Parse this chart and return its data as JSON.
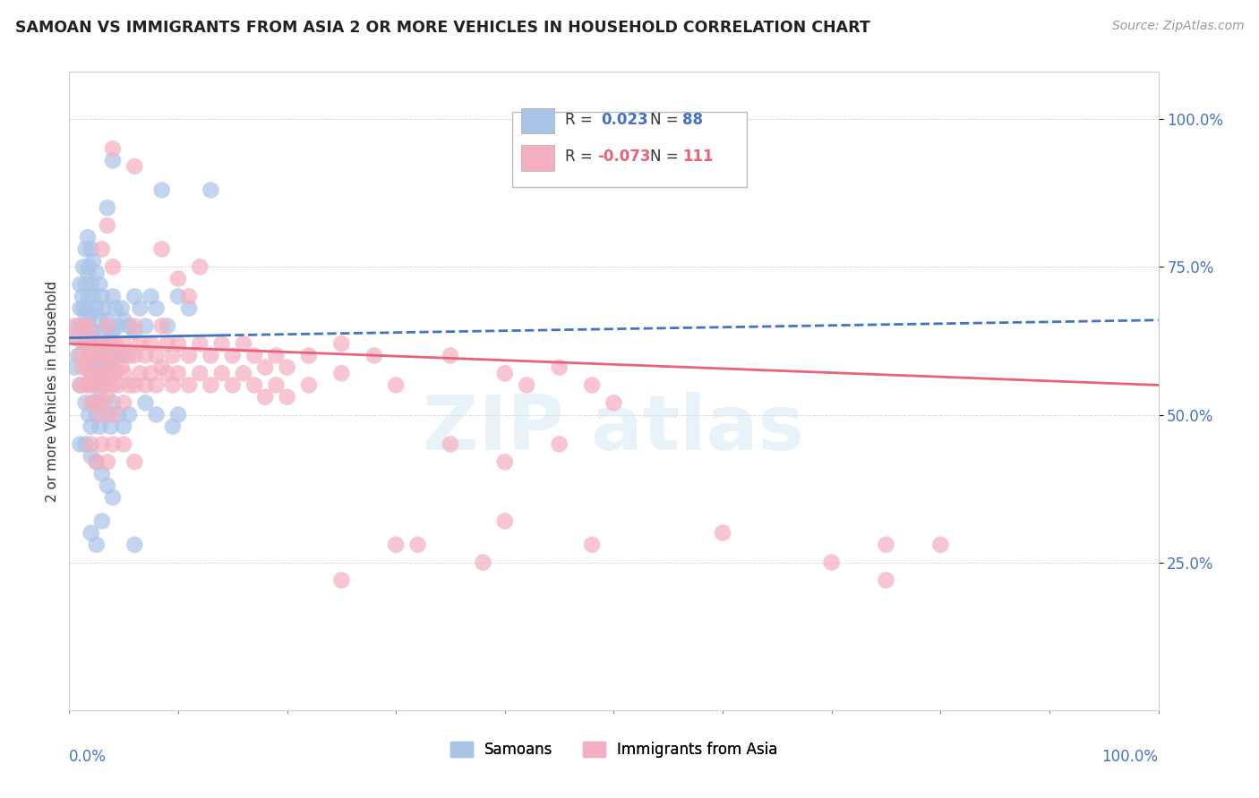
{
  "title": "SAMOAN VS IMMIGRANTS FROM ASIA 2 OR MORE VEHICLES IN HOUSEHOLD CORRELATION CHART",
  "source": "Source: ZipAtlas.com",
  "ylabel": "2 or more Vehicles in Household",
  "yticks": [
    "25.0%",
    "50.0%",
    "75.0%",
    "100.0%"
  ],
  "ytick_vals": [
    0.25,
    0.5,
    0.75,
    1.0
  ],
  "xlim": [
    0.0,
    1.0
  ],
  "ylim": [
    0.0,
    1.08
  ],
  "blue_color": "#aac4e8",
  "pink_color": "#f4afc0",
  "blue_line_color": "#4472c4",
  "pink_line_color": "#e8627a",
  "tick_color": "#4472c4",
  "background_color": "#ffffff",
  "blue_scatter": [
    [
      0.005,
      0.63
    ],
    [
      0.008,
      0.65
    ],
    [
      0.01,
      0.68
    ],
    [
      0.01,
      0.72
    ],
    [
      0.012,
      0.7
    ],
    [
      0.012,
      0.65
    ],
    [
      0.013,
      0.75
    ],
    [
      0.013,
      0.68
    ],
    [
      0.013,
      0.62
    ],
    [
      0.015,
      0.78
    ],
    [
      0.015,
      0.72
    ],
    [
      0.015,
      0.67
    ],
    [
      0.015,
      0.62
    ],
    [
      0.017,
      0.8
    ],
    [
      0.017,
      0.74
    ],
    [
      0.017,
      0.68
    ],
    [
      0.017,
      0.63
    ],
    [
      0.017,
      0.58
    ],
    [
      0.018,
      0.75
    ],
    [
      0.018,
      0.7
    ],
    [
      0.018,
      0.65
    ],
    [
      0.018,
      0.6
    ],
    [
      0.02,
      0.78
    ],
    [
      0.02,
      0.72
    ],
    [
      0.02,
      0.67
    ],
    [
      0.02,
      0.62
    ],
    [
      0.02,
      0.57
    ],
    [
      0.022,
      0.76
    ],
    [
      0.022,
      0.7
    ],
    [
      0.022,
      0.64
    ],
    [
      0.022,
      0.58
    ],
    [
      0.025,
      0.74
    ],
    [
      0.025,
      0.68
    ],
    [
      0.025,
      0.62
    ],
    [
      0.025,
      0.56
    ],
    [
      0.028,
      0.72
    ],
    [
      0.028,
      0.66
    ],
    [
      0.028,
      0.6
    ],
    [
      0.028,
      0.54
    ],
    [
      0.03,
      0.7
    ],
    [
      0.03,
      0.64
    ],
    [
      0.03,
      0.58
    ],
    [
      0.032,
      0.68
    ],
    [
      0.032,
      0.62
    ],
    [
      0.032,
      0.56
    ],
    [
      0.035,
      0.66
    ],
    [
      0.035,
      0.6
    ],
    [
      0.038,
      0.64
    ],
    [
      0.038,
      0.58
    ],
    [
      0.04,
      0.7
    ],
    [
      0.04,
      0.64
    ],
    [
      0.04,
      0.58
    ],
    [
      0.042,
      0.68
    ],
    [
      0.045,
      0.65
    ],
    [
      0.045,
      0.6
    ],
    [
      0.048,
      0.68
    ],
    [
      0.05,
      0.66
    ],
    [
      0.05,
      0.6
    ],
    [
      0.055,
      0.65
    ],
    [
      0.06,
      0.7
    ],
    [
      0.06,
      0.64
    ],
    [
      0.065,
      0.68
    ],
    [
      0.07,
      0.65
    ],
    [
      0.075,
      0.7
    ],
    [
      0.08,
      0.68
    ],
    [
      0.09,
      0.65
    ],
    [
      0.1,
      0.7
    ],
    [
      0.11,
      0.68
    ],
    [
      0.01,
      0.55
    ],
    [
      0.015,
      0.52
    ],
    [
      0.018,
      0.5
    ],
    [
      0.02,
      0.48
    ],
    [
      0.022,
      0.52
    ],
    [
      0.025,
      0.5
    ],
    [
      0.028,
      0.48
    ],
    [
      0.03,
      0.52
    ],
    [
      0.035,
      0.5
    ],
    [
      0.038,
      0.48
    ],
    [
      0.04,
      0.52
    ],
    [
      0.045,
      0.5
    ],
    [
      0.05,
      0.48
    ],
    [
      0.005,
      0.58
    ],
    [
      0.008,
      0.6
    ],
    [
      0.01,
      0.45
    ],
    [
      0.015,
      0.45
    ],
    [
      0.02,
      0.43
    ],
    [
      0.025,
      0.42
    ],
    [
      0.03,
      0.4
    ],
    [
      0.035,
      0.38
    ],
    [
      0.04,
      0.36
    ],
    [
      0.02,
      0.3
    ],
    [
      0.025,
      0.28
    ],
    [
      0.03,
      0.32
    ],
    [
      0.06,
      0.28
    ],
    [
      0.04,
      0.93
    ],
    [
      0.085,
      0.88
    ],
    [
      0.035,
      0.85
    ],
    [
      0.13,
      0.88
    ],
    [
      0.055,
      0.5
    ],
    [
      0.07,
      0.52
    ],
    [
      0.08,
      0.5
    ],
    [
      0.095,
      0.48
    ],
    [
      0.1,
      0.5
    ]
  ],
  "pink_scatter": [
    [
      0.005,
      0.65
    ],
    [
      0.008,
      0.63
    ],
    [
      0.01,
      0.6
    ],
    [
      0.01,
      0.55
    ],
    [
      0.012,
      0.65
    ],
    [
      0.012,
      0.58
    ],
    [
      0.015,
      0.62
    ],
    [
      0.015,
      0.55
    ],
    [
      0.017,
      0.65
    ],
    [
      0.017,
      0.58
    ],
    [
      0.018,
      0.6
    ],
    [
      0.018,
      0.55
    ],
    [
      0.02,
      0.63
    ],
    [
      0.02,
      0.57
    ],
    [
      0.02,
      0.52
    ],
    [
      0.022,
      0.6
    ],
    [
      0.022,
      0.55
    ],
    [
      0.025,
      0.62
    ],
    [
      0.025,
      0.57
    ],
    [
      0.025,
      0.52
    ],
    [
      0.028,
      0.6
    ],
    [
      0.028,
      0.55
    ],
    [
      0.028,
      0.5
    ],
    [
      0.03,
      0.62
    ],
    [
      0.03,
      0.57
    ],
    [
      0.03,
      0.52
    ],
    [
      0.032,
      0.6
    ],
    [
      0.032,
      0.55
    ],
    [
      0.035,
      0.65
    ],
    [
      0.035,
      0.58
    ],
    [
      0.035,
      0.53
    ],
    [
      0.038,
      0.62
    ],
    [
      0.038,
      0.57
    ],
    [
      0.04,
      0.6
    ],
    [
      0.04,
      0.55
    ],
    [
      0.04,
      0.5
    ],
    [
      0.042,
      0.62
    ],
    [
      0.042,
      0.57
    ],
    [
      0.045,
      0.6
    ],
    [
      0.045,
      0.55
    ],
    [
      0.048,
      0.58
    ],
    [
      0.05,
      0.62
    ],
    [
      0.05,
      0.57
    ],
    [
      0.05,
      0.52
    ],
    [
      0.055,
      0.6
    ],
    [
      0.055,
      0.55
    ],
    [
      0.06,
      0.65
    ],
    [
      0.06,
      0.6
    ],
    [
      0.06,
      0.55
    ],
    [
      0.065,
      0.62
    ],
    [
      0.065,
      0.57
    ],
    [
      0.07,
      0.6
    ],
    [
      0.07,
      0.55
    ],
    [
      0.075,
      0.62
    ],
    [
      0.075,
      0.57
    ],
    [
      0.08,
      0.6
    ],
    [
      0.08,
      0.55
    ],
    [
      0.085,
      0.65
    ],
    [
      0.085,
      0.58
    ],
    [
      0.09,
      0.62
    ],
    [
      0.09,
      0.57
    ],
    [
      0.095,
      0.6
    ],
    [
      0.095,
      0.55
    ],
    [
      0.1,
      0.62
    ],
    [
      0.1,
      0.57
    ],
    [
      0.11,
      0.6
    ],
    [
      0.11,
      0.55
    ],
    [
      0.12,
      0.62
    ],
    [
      0.12,
      0.57
    ],
    [
      0.13,
      0.6
    ],
    [
      0.13,
      0.55
    ],
    [
      0.14,
      0.62
    ],
    [
      0.14,
      0.57
    ],
    [
      0.15,
      0.6
    ],
    [
      0.15,
      0.55
    ],
    [
      0.16,
      0.62
    ],
    [
      0.16,
      0.57
    ],
    [
      0.17,
      0.6
    ],
    [
      0.17,
      0.55
    ],
    [
      0.18,
      0.58
    ],
    [
      0.18,
      0.53
    ],
    [
      0.19,
      0.6
    ],
    [
      0.19,
      0.55
    ],
    [
      0.2,
      0.58
    ],
    [
      0.2,
      0.53
    ],
    [
      0.22,
      0.6
    ],
    [
      0.22,
      0.55
    ],
    [
      0.25,
      0.62
    ],
    [
      0.25,
      0.57
    ],
    [
      0.28,
      0.6
    ],
    [
      0.3,
      0.55
    ],
    [
      0.03,
      0.78
    ],
    [
      0.035,
      0.82
    ],
    [
      0.04,
      0.75
    ],
    [
      0.085,
      0.78
    ],
    [
      0.1,
      0.73
    ],
    [
      0.11,
      0.7
    ],
    [
      0.12,
      0.75
    ],
    [
      0.02,
      0.45
    ],
    [
      0.025,
      0.42
    ],
    [
      0.03,
      0.45
    ],
    [
      0.035,
      0.42
    ],
    [
      0.04,
      0.45
    ],
    [
      0.05,
      0.45
    ],
    [
      0.06,
      0.42
    ],
    [
      0.04,
      0.95
    ],
    [
      0.06,
      0.92
    ],
    [
      0.35,
      0.6
    ],
    [
      0.4,
      0.57
    ],
    [
      0.42,
      0.55
    ],
    [
      0.45,
      0.58
    ],
    [
      0.48,
      0.55
    ],
    [
      0.5,
      0.52
    ],
    [
      0.35,
      0.45
    ],
    [
      0.4,
      0.42
    ],
    [
      0.45,
      0.45
    ],
    [
      0.3,
      0.28
    ],
    [
      0.4,
      0.32
    ],
    [
      0.48,
      0.28
    ],
    [
      0.25,
      0.22
    ],
    [
      0.32,
      0.28
    ],
    [
      0.38,
      0.25
    ],
    [
      0.7,
      0.25
    ],
    [
      0.75,
      0.22
    ],
    [
      0.8,
      0.28
    ],
    [
      0.6,
      0.3
    ],
    [
      0.75,
      0.28
    ]
  ]
}
